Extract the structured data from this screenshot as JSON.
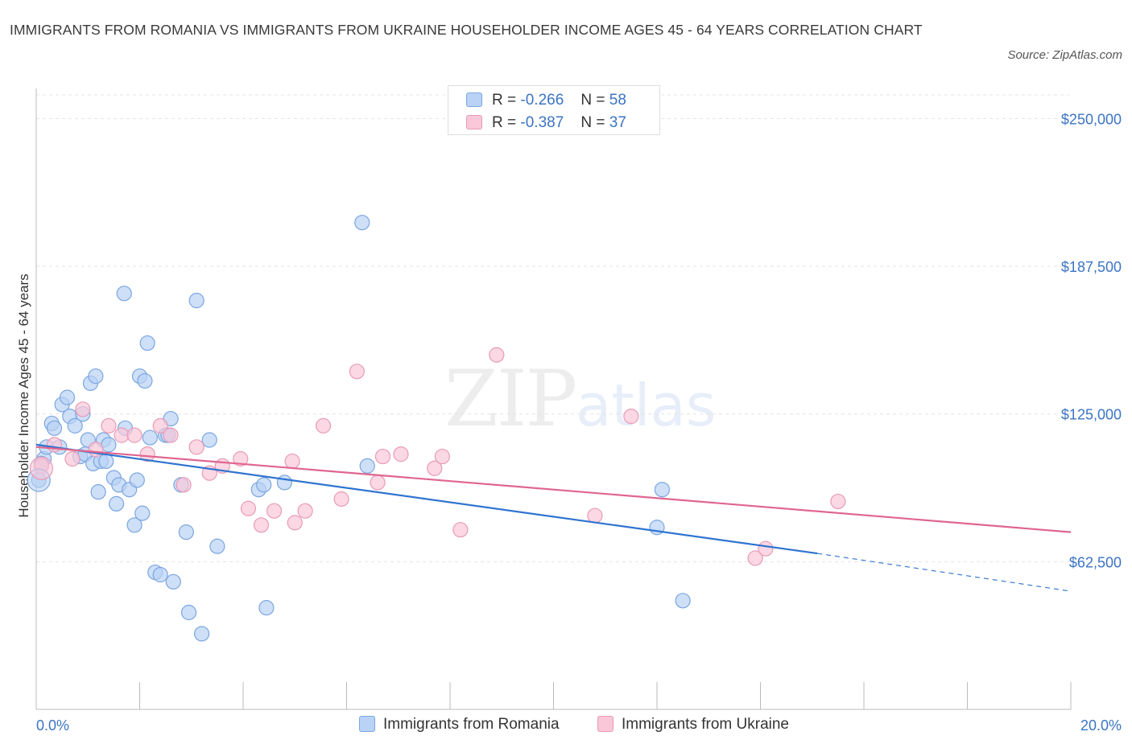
{
  "title": "IMMIGRANTS FROM ROMANIA VS IMMIGRANTS FROM UKRAINE HOUSEHOLDER INCOME AGES 45 - 64 YEARS CORRELATION CHART",
  "source": "Source: ZipAtlas.com",
  "watermark": {
    "zip": "ZIP",
    "atlas": "atlas"
  },
  "legend": {
    "r_label": "R =",
    "n_label": "N =",
    "series": [
      {
        "name": "Immigrants from Romania",
        "r": "-0.266",
        "n": "58"
      },
      {
        "name": "Immigrants from Ukraine",
        "r": "-0.387",
        "n": "37"
      }
    ]
  },
  "colors": {
    "romania_fill": "#b9d2f5",
    "romania_stroke": "#7aa6e0",
    "romania_line": "#2f74d0",
    "ukraine_fill": "#f9c7d8",
    "ukraine_stroke": "#e99ab6",
    "ukraine_line": "#e0668f",
    "tick_text": "#3b74c4",
    "grid": "#e3e3e3"
  },
  "chart_data": {
    "type": "scatter",
    "title": "IMMIGRANTS FROM ROMANIA VS IMMIGRANTS FROM UKRAINE HOUSEHOLDER INCOME AGES 45 - 64 YEARS CORRELATION CHART",
    "xlabel": "",
    "ylabel": "Householder Income Ages 45 - 64 years",
    "xlim": [
      0,
      20
    ],
    "ylim": [
      0,
      260000
    ],
    "x_tick_labels": [
      "0.0%",
      "20.0%"
    ],
    "y_ticks": [
      62500,
      125000,
      187500,
      250000
    ],
    "y_tick_labels": [
      "$62,500",
      "$125,000",
      "$187,500",
      "$250,000"
    ],
    "legend_position": "bottom-center",
    "series": [
      {
        "name": "Immigrants from Romania",
        "trend": {
          "x0": 0,
          "y0": 112000,
          "x1": 15.1,
          "y1": 66000,
          "dash_to_x": 20,
          "dash_to_y": 50000
        },
        "points": [
          [
            0.05,
            97000
          ],
          [
            0.15,
            106000
          ],
          [
            0.2,
            111000
          ],
          [
            0.3,
            121000
          ],
          [
            0.35,
            119000
          ],
          [
            0.45,
            111000
          ],
          [
            0.5,
            129000
          ],
          [
            0.6,
            132000
          ],
          [
            0.65,
            124000
          ],
          [
            0.75,
            120000
          ],
          [
            0.85,
            107000
          ],
          [
            0.9,
            125000
          ],
          [
            0.95,
            108000
          ],
          [
            1.0,
            114000
          ],
          [
            1.05,
            138000
          ],
          [
            1.1,
            104000
          ],
          [
            1.15,
            141000
          ],
          [
            1.2,
            92000
          ],
          [
            1.25,
            105000
          ],
          [
            1.3,
            114000
          ],
          [
            1.35,
            105000
          ],
          [
            1.4,
            112000
          ],
          [
            1.5,
            98000
          ],
          [
            1.55,
            87000
          ],
          [
            1.6,
            95000
          ],
          [
            1.7,
            176000
          ],
          [
            1.72,
            119000
          ],
          [
            1.8,
            93000
          ],
          [
            1.9,
            78000
          ],
          [
            1.95,
            97000
          ],
          [
            2.0,
            141000
          ],
          [
            2.05,
            83000
          ],
          [
            2.1,
            139000
          ],
          [
            2.15,
            155000
          ],
          [
            2.2,
            115000
          ],
          [
            2.3,
            58000
          ],
          [
            2.4,
            57000
          ],
          [
            2.5,
            116000
          ],
          [
            2.55,
            116000
          ],
          [
            2.6,
            123000
          ],
          [
            2.65,
            54000
          ],
          [
            2.8,
            95000
          ],
          [
            2.9,
            75000
          ],
          [
            2.95,
            41000
          ],
          [
            3.1,
            173000
          ],
          [
            3.2,
            32000
          ],
          [
            3.35,
            114000
          ],
          [
            3.5,
            69000
          ],
          [
            4.3,
            93000
          ],
          [
            4.4,
            95000
          ],
          [
            4.45,
            43000
          ],
          [
            4.8,
            96000
          ],
          [
            6.3,
            206000
          ],
          [
            6.4,
            103000
          ],
          [
            12.0,
            77000
          ],
          [
            12.1,
            93000
          ],
          [
            12.5,
            46000
          ],
          [
            0.1,
            104000
          ]
        ]
      },
      {
        "name": "Immigrants from Ukraine",
        "trend": {
          "x0": 0,
          "y0": 111000,
          "x1": 20,
          "y1": 75000
        },
        "points": [
          [
            0.1,
            103000
          ],
          [
            0.35,
            112000
          ],
          [
            0.7,
            106000
          ],
          [
            0.9,
            127000
          ],
          [
            1.15,
            110000
          ],
          [
            1.4,
            120000
          ],
          [
            1.65,
            116000
          ],
          [
            1.9,
            116000
          ],
          [
            2.15,
            108000
          ],
          [
            2.4,
            120000
          ],
          [
            2.6,
            116000
          ],
          [
            2.85,
            95000
          ],
          [
            3.1,
            111000
          ],
          [
            3.35,
            100000
          ],
          [
            3.6,
            103000
          ],
          [
            3.95,
            106000
          ],
          [
            4.1,
            85000
          ],
          [
            4.35,
            78000
          ],
          [
            4.6,
            84000
          ],
          [
            4.95,
            105000
          ],
          [
            5.0,
            79000
          ],
          [
            5.2,
            84000
          ],
          [
            5.55,
            120000
          ],
          [
            5.9,
            89000
          ],
          [
            6.2,
            143000
          ],
          [
            6.6,
            96000
          ],
          [
            6.7,
            107000
          ],
          [
            7.05,
            108000
          ],
          [
            7.7,
            102000
          ],
          [
            7.85,
            107000
          ],
          [
            8.2,
            76000
          ],
          [
            8.9,
            150000
          ],
          [
            10.8,
            82000
          ],
          [
            11.5,
            124000
          ],
          [
            13.9,
            64000
          ],
          [
            14.1,
            68000
          ],
          [
            15.5,
            88000
          ]
        ]
      }
    ]
  }
}
